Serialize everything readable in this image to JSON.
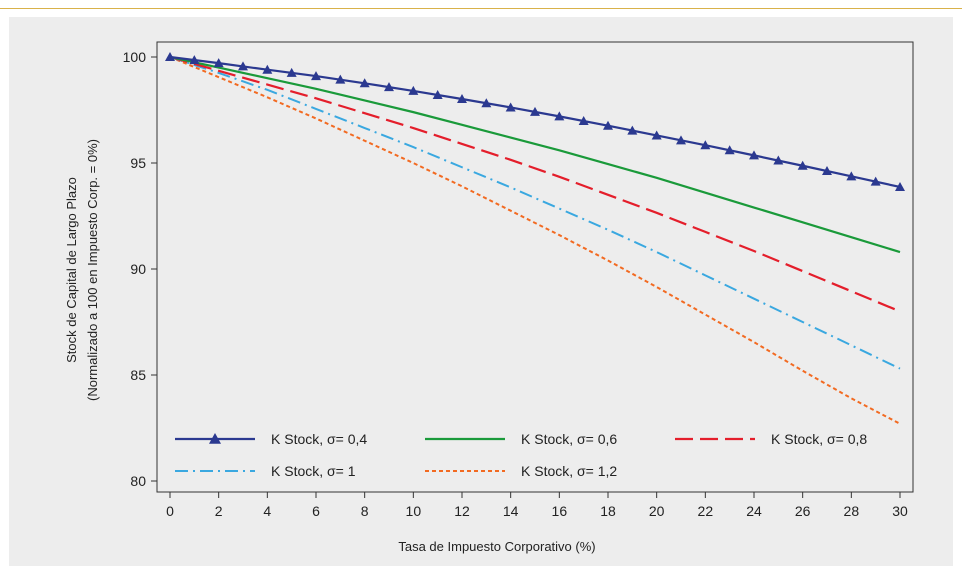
{
  "chart_data": {
    "type": "line",
    "title": "",
    "xlabel": "Tasa de Impuesto Corporativo (%)",
    "ylabel_line1": "Stock de Capital de Largo Plazo",
    "ylabel_line2": "(Normalizado a 100 en Impuesto Corp. = 0%)",
    "xlim": [
      0,
      30
    ],
    "ylim": [
      80,
      100
    ],
    "xticks": [
      0,
      2,
      4,
      6,
      8,
      10,
      12,
      14,
      16,
      18,
      20,
      22,
      24,
      26,
      28,
      30
    ],
    "yticks": [
      80,
      85,
      90,
      95,
      100
    ],
    "grid": false,
    "legend_position": "bottom-left",
    "x": [
      0,
      2,
      4,
      6,
      8,
      10,
      12,
      14,
      16,
      18,
      20,
      22,
      24,
      26,
      28,
      30
    ],
    "series": [
      {
        "name": "K Stock, σ= 0,4",
        "color": "#2b3990",
        "style": "solid-triangle-markers",
        "values": [
          100.0,
          99.71,
          99.4,
          99.1,
          98.76,
          98.4,
          98.02,
          97.62,
          97.2,
          96.76,
          96.3,
          95.84,
          95.36,
          94.87,
          94.37,
          93.87
        ]
      },
      {
        "name": "K Stock, σ= 0,6",
        "color": "#1a9a3a",
        "style": "solid",
        "values": [
          100.0,
          99.5,
          99.0,
          98.5,
          97.95,
          97.4,
          96.8,
          96.2,
          95.6,
          94.95,
          94.3,
          93.6,
          92.9,
          92.2,
          91.5,
          90.8
        ]
      },
      {
        "name": "K Stock, σ= 0,8",
        "color": "#e41e2b",
        "style": "dashed",
        "values": [
          100.0,
          99.35,
          98.7,
          98.05,
          97.35,
          96.65,
          95.9,
          95.15,
          94.35,
          93.5,
          92.65,
          91.75,
          90.85,
          89.9,
          88.95,
          88.0
        ]
      },
      {
        "name": "K Stock, σ= 1",
        "color": "#3aa8e0",
        "style": "dash-dot",
        "values": [
          100.0,
          99.25,
          98.45,
          97.55,
          96.65,
          95.75,
          94.8,
          93.85,
          92.85,
          91.85,
          90.8,
          89.7,
          88.6,
          87.5,
          86.4,
          85.3
        ]
      },
      {
        "name": "K Stock, σ= 1,2",
        "color": "#f26a21",
        "style": "dotted",
        "values": [
          100.0,
          99.05,
          98.1,
          97.1,
          96.05,
          95.0,
          93.9,
          92.75,
          91.6,
          90.4,
          89.15,
          87.85,
          86.55,
          85.2,
          83.9,
          82.7
        ]
      }
    ]
  }
}
